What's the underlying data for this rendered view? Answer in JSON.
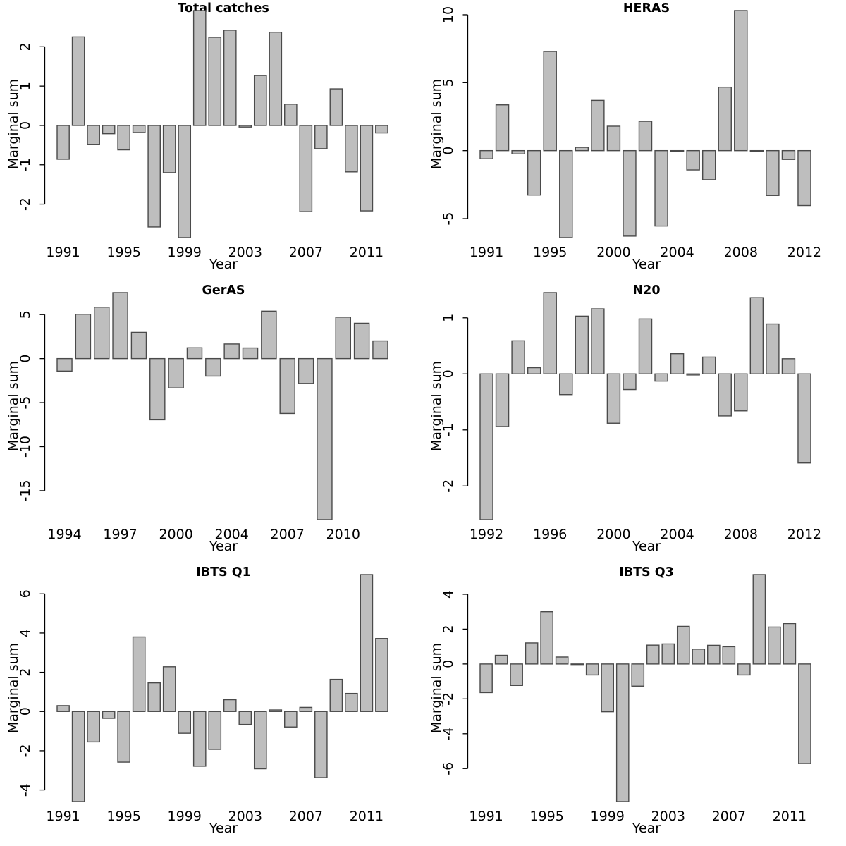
{
  "figure": {
    "description": "Six-panel barplot figure of marginal sums by year for catch and survey indices",
    "background": "#ffffff"
  },
  "colors": {
    "bar_fill": "#bebebe",
    "bar_border": "#4a4a4a",
    "axis": "#000000",
    "text": "#000000"
  },
  "labels": {
    "xlabel": "Year",
    "ylabel": "Marginal sum"
  },
  "chart_data": [
    {
      "type": "bar",
      "title": "Total catches",
      "xlabel": "Year",
      "ylabel": "Marginal sum",
      "slots": 22,
      "categories": [
        "1991",
        "1992",
        "1993",
        "1994",
        "1995",
        "1996",
        "1997",
        "1998",
        "1999",
        "2000",
        "2001",
        "2002",
        "2003",
        "2004",
        "2005",
        "2006",
        "2007",
        "2008",
        "2009",
        "2010",
        "2011",
        "2012"
      ],
      "values": [
        -0.86,
        2.25,
        -0.48,
        -0.21,
        -0.62,
        -0.18,
        -2.58,
        -1.2,
        -2.85,
        2.92,
        2.24,
        2.42,
        -0.04,
        1.27,
        2.37,
        0.54,
        -2.19,
        -0.59,
        0.93,
        -1.18,
        -2.17,
        -0.19
      ],
      "ylim": [
        -2.85,
        2.92
      ],
      "yticks": [
        -2,
        -1,
        0,
        1,
        2
      ],
      "xticks": [
        {
          "slot": 0,
          "label": "1991"
        },
        {
          "slot": 4,
          "label": "1995"
        },
        {
          "slot": 8,
          "label": "1999"
        },
        {
          "slot": 12,
          "label": "2003"
        },
        {
          "slot": 16,
          "label": "2007"
        },
        {
          "slot": 20,
          "label": "2011"
        }
      ]
    },
    {
      "type": "bar",
      "title": "HERAS",
      "xlabel": "Year",
      "ylabel": "Marginal sum",
      "slots": 21,
      "categories": [
        "1991",
        "1992",
        "1993",
        "1994",
        "1995",
        "1996",
        "1997",
        "1998",
        "2000",
        "2001",
        "2002",
        "2003",
        "2004",
        "2005",
        "2006",
        "2007",
        "2008",
        "2009",
        "2010",
        "2011",
        "2012"
      ],
      "values": [
        -0.6,
        3.37,
        -0.24,
        -3.27,
        7.3,
        -6.4,
        0.24,
        3.7,
        1.8,
        -6.29,
        2.16,
        -5.55,
        -0.05,
        -1.42,
        -2.14,
        4.67,
        10.31,
        -0.07,
        -3.3,
        -0.65,
        -4.04
      ],
      "ylim": [
        -6.4,
        10.31
      ],
      "yticks": [
        -5,
        0,
        5,
        10
      ],
      "xticks": [
        {
          "slot": 0,
          "label": "1991"
        },
        {
          "slot": 4,
          "label": "1995"
        },
        {
          "slot": 8,
          "label": "2000"
        },
        {
          "slot": 12,
          "label": "2004"
        },
        {
          "slot": 16,
          "label": "2008"
        },
        {
          "slot": 20,
          "label": "2012"
        }
      ]
    },
    {
      "type": "bar",
      "title": "GerAS",
      "xlabel": "Year",
      "ylabel": "Marginal sum",
      "slots": 18,
      "categories": [
        "1994",
        "1995",
        "1996",
        "1997",
        "1998",
        "1999",
        "2000",
        "2002",
        "2003",
        "2004",
        "2005",
        "2006",
        "2007",
        "2008",
        "2009",
        "2010",
        "2011",
        "2012"
      ],
      "values": [
        -1.42,
        5.04,
        5.84,
        7.5,
        2.98,
        -6.95,
        -3.33,
        1.23,
        -1.99,
        1.66,
        1.21,
        5.39,
        -6.23,
        -2.82,
        -18.29,
        4.71,
        4.02,
        2.01
      ],
      "ylim": [
        -18.29,
        7.5
      ],
      "yticks": [
        -15,
        -10,
        -5,
        0,
        5
      ],
      "xticks": [
        {
          "slot": 0,
          "label": "1994"
        },
        {
          "slot": 3,
          "label": "1997"
        },
        {
          "slot": 6,
          "label": "2000"
        },
        {
          "slot": 9,
          "label": "2004"
        },
        {
          "slot": 12,
          "label": "2007"
        },
        {
          "slot": 15,
          "label": "2010"
        }
      ]
    },
    {
      "type": "bar",
      "title": "N20",
      "xlabel": "Year",
      "ylabel": "Marginal sum",
      "slots": 21,
      "categories": [
        "1992",
        "1993",
        "1994",
        "1995",
        "1996",
        "1997",
        "1998",
        "1999",
        "2000",
        "2001",
        "2002",
        "2003",
        "2004",
        "2005",
        "2006",
        "2007",
        "2008",
        "2009",
        "2010",
        "2011",
        "2012"
      ],
      "values": [
        -2.6,
        -0.94,
        0.59,
        0.11,
        1.45,
        -0.37,
        1.03,
        1.16,
        -0.88,
        -0.28,
        0.98,
        -0.13,
        0.36,
        -0.02,
        0.3,
        -0.75,
        -0.66,
        1.36,
        0.89,
        0.27,
        -1.59
      ],
      "ylim": [
        -2.6,
        1.45
      ],
      "yticks": [
        -2,
        -1,
        0,
        1
      ],
      "xticks": [
        {
          "slot": 0,
          "label": "1992"
        },
        {
          "slot": 4,
          "label": "1996"
        },
        {
          "slot": 8,
          "label": "2000"
        },
        {
          "slot": 12,
          "label": "2004"
        },
        {
          "slot": 16,
          "label": "2008"
        },
        {
          "slot": 20,
          "label": "2012"
        }
      ]
    },
    {
      "type": "bar",
      "title": "IBTS Q1",
      "xlabel": "Year",
      "ylabel": "Marginal sum",
      "slots": 22,
      "categories": [
        "1991",
        "1992",
        "1993",
        "1994",
        "1995",
        "1996",
        "1997",
        "1998",
        "1999",
        "2000",
        "2001",
        "2002",
        "2003",
        "2004",
        "2005",
        "2006",
        "2007",
        "2008",
        "2009",
        "2010",
        "2011",
        "2012"
      ],
      "values": [
        0.3,
        -4.59,
        -1.55,
        -0.35,
        -2.58,
        3.8,
        1.46,
        2.28,
        -1.11,
        -2.79,
        -1.93,
        0.6,
        -0.66,
        -2.92,
        0.08,
        -0.79,
        0.21,
        -3.37,
        1.64,
        0.92,
        6.98,
        3.72
      ],
      "ylim": [
        -4.59,
        6.98
      ],
      "yticks": [
        -4,
        -2,
        0,
        2,
        4,
        6
      ],
      "xticks": [
        {
          "slot": 0,
          "label": "1991"
        },
        {
          "slot": 4,
          "label": "1995"
        },
        {
          "slot": 8,
          "label": "1999"
        },
        {
          "slot": 12,
          "label": "2003"
        },
        {
          "slot": 16,
          "label": "2007"
        },
        {
          "slot": 20,
          "label": "2011"
        }
      ]
    },
    {
      "type": "bar",
      "title": "IBTS Q3",
      "xlabel": "Year",
      "ylabel": "Marginal sum",
      "slots": 22,
      "categories": [
        "1991",
        "1992",
        "1993",
        "1994",
        "1995",
        "1996",
        "1997",
        "1998",
        "1999",
        "2000",
        "2001",
        "2002",
        "2003",
        "2004",
        "2005",
        "2006",
        "2007",
        "2008",
        "2009",
        "2010",
        "2011",
        "2012"
      ],
      "values": [
        -1.64,
        0.5,
        -1.23,
        1.21,
        3.0,
        0.4,
        -0.03,
        -0.63,
        -2.74,
        -7.89,
        -1.27,
        1.08,
        1.15,
        2.16,
        0.85,
        1.07,
        0.99,
        -0.63,
        5.13,
        2.12,
        2.32,
        -5.71
      ],
      "ylim": [
        -7.89,
        5.13
      ],
      "yticks": [
        -6,
        -4,
        -2,
        0,
        2,
        4
      ],
      "xticks": [
        {
          "slot": 0,
          "label": "1991"
        },
        {
          "slot": 4,
          "label": "1995"
        },
        {
          "slot": 8,
          "label": "1999"
        },
        {
          "slot": 12,
          "label": "2003"
        },
        {
          "slot": 16,
          "label": "2007"
        },
        {
          "slot": 20,
          "label": "2011"
        }
      ]
    }
  ]
}
